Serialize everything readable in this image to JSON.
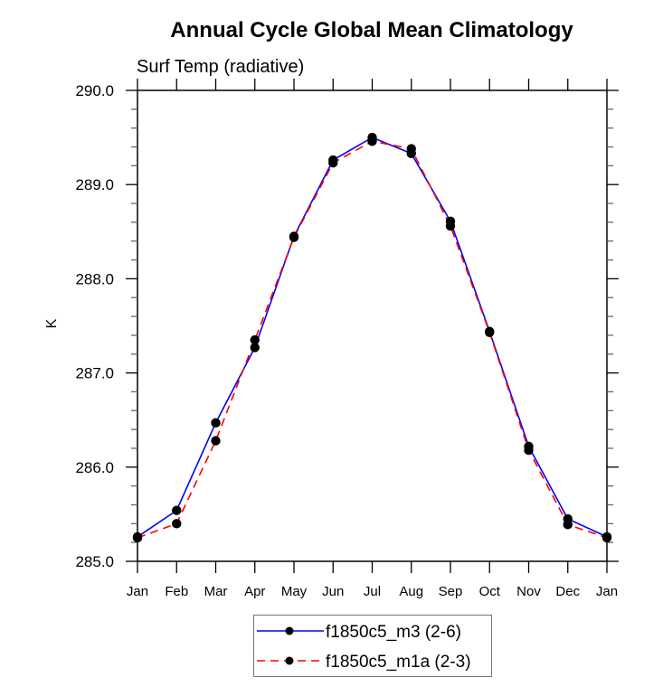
{
  "chart_data": {
    "type": "line",
    "title": "Annual Cycle Global Mean Climatology",
    "subtitle": "Surf Temp (radiative)",
    "xlabel": "",
    "ylabel": "K",
    "categories": [
      "Jan",
      "Feb",
      "Mar",
      "Apr",
      "May",
      "Jun",
      "Jul",
      "Aug",
      "Sep",
      "Oct",
      "Nov",
      "Dec",
      "Jan"
    ],
    "ylim": [
      285.0,
      290.0
    ],
    "yticks": [
      "285.0",
      "286.0",
      "287.0",
      "288.0",
      "289.0",
      "290.0"
    ],
    "ytick_values": [
      285.0,
      286.0,
      287.0,
      288.0,
      289.0,
      290.0
    ],
    "y_minor_step": 0.2,
    "grid": false,
    "legend_position": "bottom-center",
    "series": [
      {
        "name": "f1850c5_m3 (2-6)",
        "color": "#0000ff",
        "line_style": "solid",
        "marker": "filled-circle",
        "values": [
          285.26,
          285.54,
          286.47,
          287.27,
          288.45,
          289.26,
          289.5,
          289.33,
          288.61,
          287.44,
          286.22,
          285.45,
          285.26
        ]
      },
      {
        "name": "f1850c5_m1a (2-3)",
        "color": "#ff0000",
        "line_style": "dashed",
        "marker": "filled-circle",
        "values": [
          285.25,
          285.4,
          286.28,
          287.35,
          288.44,
          289.23,
          289.46,
          289.38,
          288.56,
          287.43,
          286.18,
          285.39,
          285.25
        ]
      }
    ]
  }
}
